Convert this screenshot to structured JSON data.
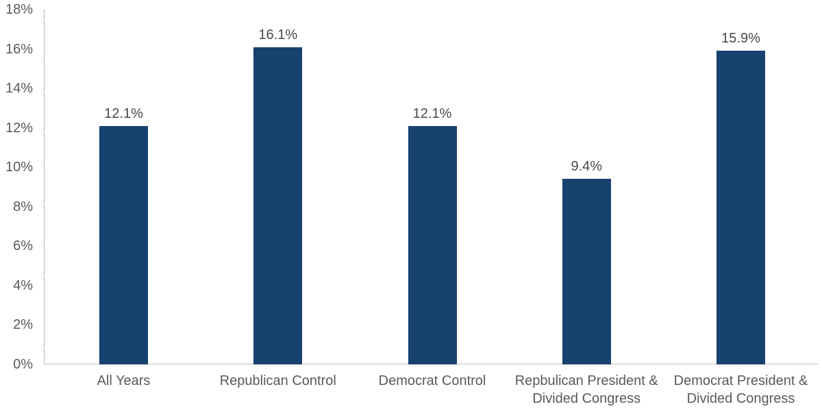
{
  "chart_data": {
    "type": "bar",
    "categories": [
      "All Years",
      "Republican Control",
      "Democrat Control",
      "Repbulican President & Divided Congress",
      "Democrat President & Divided Congress"
    ],
    "values": [
      12.1,
      16.1,
      12.1,
      9.4,
      15.9
    ],
    "data_labels": [
      "12.1%",
      "16.1%",
      "12.1%",
      "9.4%",
      "15.9%"
    ],
    "title": "",
    "xlabel": "",
    "ylabel": "",
    "ylim": [
      0,
      18
    ],
    "y_tick_step": 2,
    "y_tick_labels": [
      "0%",
      "2%",
      "4%",
      "6%",
      "8%",
      "10%",
      "12%",
      "14%",
      "16%",
      "18%"
    ],
    "grid": false,
    "legend": false,
    "colors": {
      "bar": "#17416e",
      "axis_line": "#b5b5b5",
      "tick_label": "#595959",
      "data_label": "#474747",
      "background": "#ffffff"
    }
  }
}
